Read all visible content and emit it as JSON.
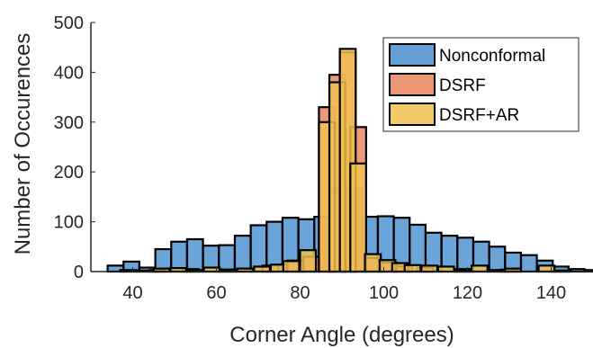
{
  "chart_data": {
    "type": "bar",
    "xlabel": "Corner Angle (degrees)",
    "ylabel": "Number of Occurences",
    "xlim": [
      30,
      150
    ],
    "ylim": [
      0,
      500
    ],
    "x_ticks": [
      "40",
      "60",
      "80",
      "100",
      "120",
      "140"
    ],
    "y_ticks": [
      "0",
      "100",
      "200",
      "300",
      "400",
      "500"
    ],
    "legend_position": "top-right",
    "grid": false,
    "bin_width": 3.78,
    "series": [
      {
        "name": "Nonconformal",
        "color": "#4A90D0",
        "bins": [
          {
            "x": 34.0,
            "y": 12
          },
          {
            "x": 37.8,
            "y": 20
          },
          {
            "x": 41.6,
            "y": 8
          },
          {
            "x": 45.4,
            "y": 45
          },
          {
            "x": 49.2,
            "y": 60
          },
          {
            "x": 53.0,
            "y": 65
          },
          {
            "x": 56.8,
            "y": 52
          },
          {
            "x": 60.6,
            "y": 53
          },
          {
            "x": 64.4,
            "y": 72
          },
          {
            "x": 68.2,
            "y": 93
          },
          {
            "x": 72.0,
            "y": 100
          },
          {
            "x": 75.8,
            "y": 108
          },
          {
            "x": 79.6,
            "y": 105
          },
          {
            "x": 83.4,
            "y": 110
          },
          {
            "x": 87.2,
            "y": 170
          },
          {
            "x": 91.0,
            "y": 165
          },
          {
            "x": 94.8,
            "y": 110
          },
          {
            "x": 98.6,
            "y": 111
          },
          {
            "x": 102.4,
            "y": 108
          },
          {
            "x": 106.2,
            "y": 94
          },
          {
            "x": 110.0,
            "y": 78
          },
          {
            "x": 113.8,
            "y": 72
          },
          {
            "x": 117.6,
            "y": 68
          },
          {
            "x": 121.4,
            "y": 60
          },
          {
            "x": 125.2,
            "y": 50
          },
          {
            "x": 129.0,
            "y": 38
          },
          {
            "x": 132.8,
            "y": 33
          },
          {
            "x": 136.6,
            "y": 22
          },
          {
            "x": 140.4,
            "y": 10
          },
          {
            "x": 144.2,
            "y": 5
          },
          {
            "x": 148.0,
            "y": 3
          }
        ]
      },
      {
        "name": "DSRF",
        "color": "#E8845C",
        "bins": [
          {
            "x": 44.0,
            "y": 3
          },
          {
            "x": 52.0,
            "y": 5
          },
          {
            "x": 60.0,
            "y": 4
          },
          {
            "x": 71.0,
            "y": 12
          },
          {
            "x": 77.0,
            "y": 22
          },
          {
            "x": 80.8,
            "y": 30
          },
          {
            "x": 84.5,
            "y": 330
          },
          {
            "x": 87.0,
            "y": 395
          },
          {
            "x": 89.5,
            "y": 440
          },
          {
            "x": 92.0,
            "y": 290
          },
          {
            "x": 95.5,
            "y": 27
          },
          {
            "x": 99.3,
            "y": 18
          },
          {
            "x": 103.0,
            "y": 10
          },
          {
            "x": 108.0,
            "y": 8
          },
          {
            "x": 117.0,
            "y": 5
          },
          {
            "x": 128.0,
            "y": 4
          },
          {
            "x": 140.0,
            "y": 2
          }
        ]
      },
      {
        "name": "DSRF+AR",
        "color": "#F2C14E",
        "bins": [
          {
            "x": 37.0,
            "y": 3
          },
          {
            "x": 41.0,
            "y": 2
          },
          {
            "x": 45.0,
            "y": 6
          },
          {
            "x": 49.0,
            "y": 7
          },
          {
            "x": 53.0,
            "y": 3
          },
          {
            "x": 57.0,
            "y": 8
          },
          {
            "x": 61.0,
            "y": 4
          },
          {
            "x": 65.0,
            "y": 6
          },
          {
            "x": 69.0,
            "y": 10
          },
          {
            "x": 73.0,
            "y": 14
          },
          {
            "x": 76.0,
            "y": 21
          },
          {
            "x": 80.0,
            "y": 43
          },
          {
            "x": 84.5,
            "y": 300
          },
          {
            "x": 87.0,
            "y": 380
          },
          {
            "x": 89.5,
            "y": 447
          },
          {
            "x": 92.0,
            "y": 217
          },
          {
            "x": 95.5,
            "y": 35
          },
          {
            "x": 99.0,
            "y": 23
          },
          {
            "x": 102.0,
            "y": 17
          },
          {
            "x": 105.0,
            "y": 13
          },
          {
            "x": 109.0,
            "y": 12
          },
          {
            "x": 113.0,
            "y": 10
          },
          {
            "x": 117.0,
            "y": 4
          },
          {
            "x": 121.0,
            "y": 12
          },
          {
            "x": 125.0,
            "y": 3
          },
          {
            "x": 129.0,
            "y": 6
          },
          {
            "x": 137.0,
            "y": 12
          },
          {
            "x": 141.0,
            "y": 2
          }
        ]
      }
    ]
  }
}
